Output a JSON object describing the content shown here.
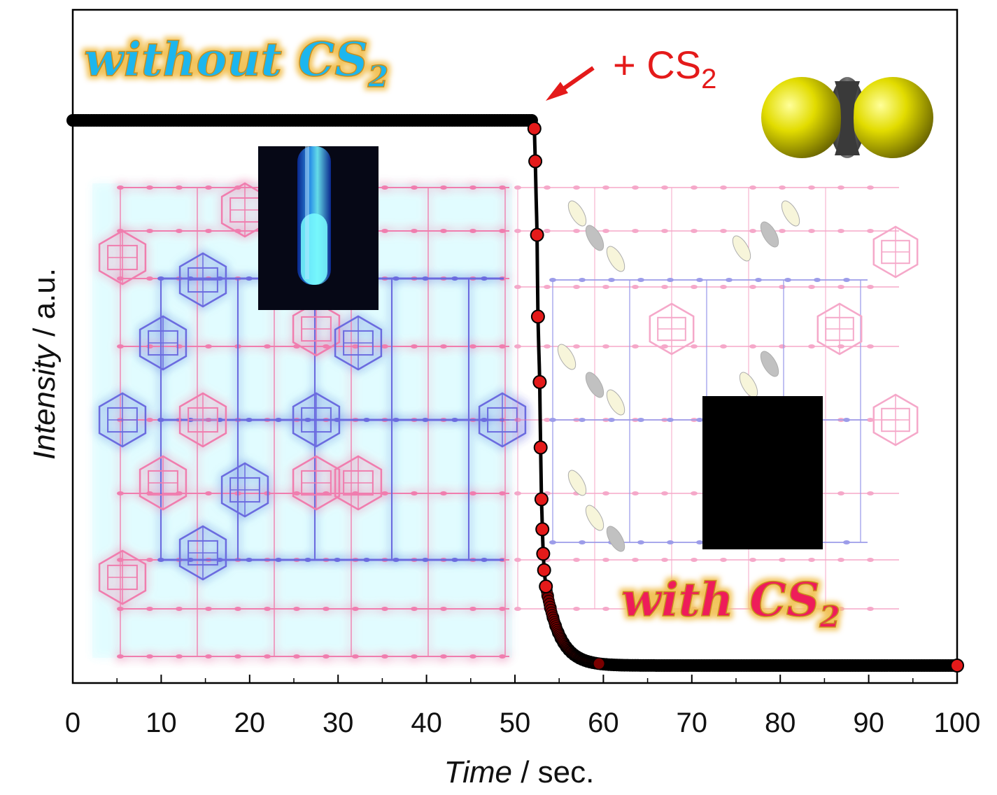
{
  "chart_data": {
    "type": "scatter",
    "xlabel_main": "Time",
    "xlabel_unit": " / sec.",
    "ylabel_main": "Intensity",
    "ylabel_unit": " / a.u.",
    "xlim": [
      0,
      100
    ],
    "xticks": [
      "0",
      "10",
      "20",
      "30",
      "40",
      "50",
      "60",
      "70",
      "80",
      "90",
      "100"
    ],
    "grid": false,
    "annotations": {
      "without_text": "without CS",
      "without_sub": "2",
      "with_text": "with CS",
      "with_sub": "2",
      "add_label": "+ CS",
      "add_sub": "2"
    },
    "series": [
      {
        "marker_color": "#000000",
        "x": [
          0,
          10,
          20,
          30,
          40,
          50,
          52
        ],
        "y": [
          1.0,
          1.0,
          1.0,
          1.0,
          1.0,
          1.0,
          1.0
        ]
      },
      {
        "marker_color": "#e41a1a",
        "x": [
          52.2,
          52.3,
          52.5,
          52.6,
          52.8,
          52.9,
          53.0,
          53.1,
          53.2,
          53.3,
          53.5,
          100
        ],
        "y": [
          0.985,
          0.925,
          0.79,
          0.64,
          0.52,
          0.4,
          0.305,
          0.25,
          0.205,
          0.175,
          0.145,
          0.0
        ]
      }
    ]
  },
  "colors": {
    "marker_black": "#000000",
    "marker_red": "#e41a1a",
    "framework_pink": "#ef6fa6",
    "framework_blue": "#5b5bdc",
    "glow_cyan": "#9ff3ff",
    "without_color": "#1fb6ee",
    "with_color": "#ee1d5a",
    "outline_gold": "#d9a73a",
    "sulfur_yellow": "#e0d800",
    "carbon_gray": "#444444"
  },
  "icons": {
    "cs2_molecule": "cs2-molecule-icon",
    "tube_photo": "fluorescent-tube-photo",
    "dark_tube_photo": "dark-tube-photo",
    "arrow": "red-arrow-icon"
  }
}
